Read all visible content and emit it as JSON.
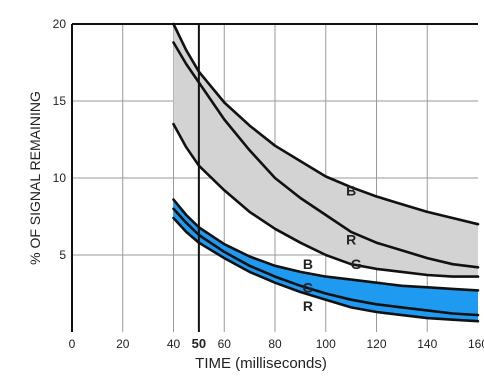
{
  "chart_data": {
    "type": "line",
    "xlabel": "TIME (milliseconds)",
    "ylabel": "% OF SIGNAL REMAINING",
    "xlim": [
      0,
      160
    ],
    "ylim": [
      0,
      20
    ],
    "x_ticks": [
      0,
      20,
      40,
      50,
      60,
      80,
      100,
      120,
      140,
      160
    ],
    "y_ticks": [
      5,
      10,
      15,
      20
    ],
    "grid": true,
    "colors": {
      "upper_band": "#d3d3d3",
      "lower_band": "#1e9bf0",
      "line": "#111111",
      "marker_line": "#111111"
    },
    "marker_line_x": 50,
    "series": [
      {
        "name": "B",
        "band": "upper",
        "x": [
          40,
          45,
          50,
          60,
          70,
          80,
          90,
          100,
          110,
          120,
          130,
          140,
          150,
          160
        ],
        "values": [
          20.0,
          18.3,
          16.9,
          14.9,
          13.4,
          12.1,
          11.1,
          10.1,
          9.4,
          8.8,
          8.3,
          7.8,
          7.4,
          7.0
        ]
      },
      {
        "name": "R",
        "band": "upper",
        "x": [
          40,
          45,
          50,
          60,
          70,
          80,
          90,
          100,
          110,
          120,
          130,
          140,
          150,
          160
        ],
        "values": [
          18.8,
          17.4,
          16.2,
          13.8,
          11.8,
          10.0,
          8.7,
          7.6,
          6.5,
          5.8,
          5.3,
          4.8,
          4.4,
          4.2
        ]
      },
      {
        "name": "G",
        "band": "upper",
        "x": [
          40,
          45,
          50,
          60,
          70,
          80,
          90,
          100,
          110,
          120,
          130,
          140,
          150,
          160
        ],
        "values": [
          13.5,
          12.0,
          10.8,
          9.2,
          7.8,
          6.7,
          5.8,
          5.0,
          4.4,
          4.1,
          3.9,
          3.7,
          3.6,
          3.6
        ]
      },
      {
        "name": "B",
        "band": "lower",
        "x": [
          40,
          45,
          50,
          60,
          70,
          80,
          90,
          100,
          110,
          120,
          130,
          140,
          150,
          160
        ],
        "values": [
          8.6,
          7.6,
          6.8,
          5.7,
          4.9,
          4.3,
          3.9,
          3.6,
          3.4,
          3.2,
          3.0,
          2.9,
          2.8,
          2.7
        ]
      },
      {
        "name": "G",
        "band": "lower",
        "x": [
          40,
          45,
          50,
          60,
          70,
          80,
          90,
          100,
          110,
          120,
          130,
          140,
          150,
          160
        ],
        "values": [
          8.0,
          7.1,
          6.3,
          5.2,
          4.3,
          3.6,
          3.0,
          2.5,
          2.1,
          1.8,
          1.6,
          1.4,
          1.2,
          1.1
        ]
      },
      {
        "name": "R",
        "band": "lower",
        "x": [
          40,
          45,
          50,
          60,
          70,
          80,
          90,
          100,
          110,
          120,
          130,
          140,
          150,
          160
        ],
        "values": [
          7.4,
          6.5,
          5.8,
          4.8,
          3.9,
          3.2,
          2.6,
          2.1,
          1.6,
          1.3,
          1.1,
          0.9,
          0.8,
          0.7
        ]
      }
    ],
    "curve_labels": [
      {
        "text": "B",
        "x": 110,
        "y": 9.2
      },
      {
        "text": "R",
        "x": 110,
        "y": 6.0
      },
      {
        "text": "G",
        "x": 112,
        "y": 4.4
      },
      {
        "text": "B",
        "x": 93,
        "y": 4.4
      },
      {
        "text": "G",
        "x": 93,
        "y": 2.9
      },
      {
        "text": "R",
        "x": 93,
        "y": 1.7
      }
    ]
  }
}
